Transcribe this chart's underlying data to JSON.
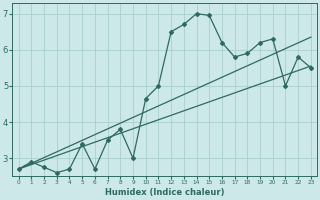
{
  "xlabel": "Humidex (Indice chaleur)",
  "ylabel": "",
  "x_data": [
    0,
    1,
    2,
    3,
    4,
    5,
    6,
    7,
    8,
    9,
    10,
    11,
    12,
    13,
    14,
    15,
    16,
    17,
    18,
    19,
    20,
    21,
    22,
    23
  ],
  "y_curve": [
    2.7,
    2.9,
    2.75,
    2.6,
    2.7,
    3.4,
    2.7,
    3.5,
    3.8,
    3.0,
    4.65,
    5.0,
    6.5,
    6.7,
    7.0,
    6.95,
    6.2,
    5.8,
    5.9,
    6.2,
    6.3,
    5.0,
    5.8,
    5.5
  ],
  "reg_line1": [
    [
      0,
      2.7
    ],
    [
      23,
      5.55
    ]
  ],
  "reg_line2": [
    [
      0,
      2.7
    ],
    [
      23,
      6.35
    ]
  ],
  "line_color": "#2e6b5e",
  "bg_color": "#cde8e8",
  "grid_color": "#aacece",
  "xlim": [
    -0.5,
    23.5
  ],
  "ylim": [
    2.5,
    7.3
  ],
  "yticks": [
    3,
    4,
    5,
    6,
    7
  ],
  "xtick_labels": [
    "0",
    "1",
    "2",
    "3",
    "4",
    "5",
    "6",
    "7",
    "8",
    "9",
    "10",
    "11",
    "12",
    "13",
    "14",
    "15",
    "16",
    "17",
    "18",
    "19",
    "20",
    "21",
    "22",
    "23"
  ]
}
